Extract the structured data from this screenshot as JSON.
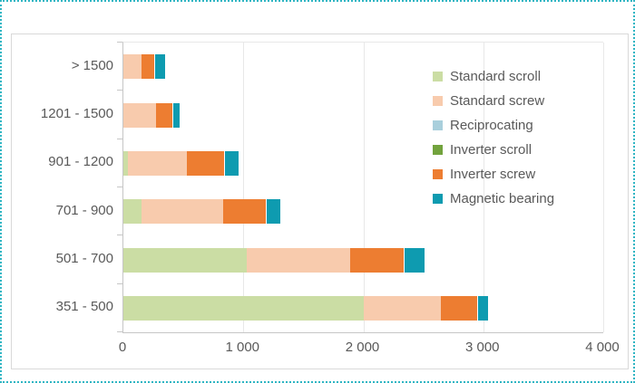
{
  "frame": {
    "outer_border_color": "#2fb5c3",
    "chart_border_color": "#d9d9d9",
    "text_color": "#595959",
    "gridline_color": "#e8e8e8",
    "axis_color": "#c6c6c6"
  },
  "chart_data": {
    "type": "bar",
    "orientation": "horizontal",
    "stacked": true,
    "title": "",
    "xlabel": "",
    "ylabel": "",
    "categories": [
      "> 1500",
      "1201 - 1500",
      "901 - 1200",
      "701 - 900",
      "501 - 700",
      "351 - 500"
    ],
    "series": [
      {
        "name": "Standard scroll",
        "color": "#cbdda4",
        "values": [
          0,
          0,
          40,
          150,
          1030,
          2000
        ]
      },
      {
        "name": "Standard screw",
        "color": "#f8cbad",
        "values": [
          150,
          270,
          490,
          680,
          860,
          650
        ]
      },
      {
        "name": "Reciprocating",
        "color": "#a9cfdc",
        "values": [
          0,
          0,
          0,
          0,
          0,
          0
        ]
      },
      {
        "name": "Inverter scroll",
        "color": "#72a33d",
        "values": [
          0,
          0,
          0,
          0,
          0,
          0
        ]
      },
      {
        "name": "Inverter screw",
        "color": "#ed7d31",
        "values": [
          110,
          140,
          310,
          360,
          450,
          300
        ]
      },
      {
        "name": "Magnetic bearing",
        "color": "#0e9bb0",
        "values": [
          90,
          60,
          120,
          120,
          170,
          90
        ]
      }
    ],
    "totals": [
      350,
      470,
      960,
      1310,
      2510,
      3040
    ],
    "xlim": [
      0,
      4000
    ],
    "x_tick_values": [
      0,
      1000,
      2000,
      3000,
      4000
    ],
    "x_tick_labels": [
      "0",
      "1 000",
      "2 000",
      "3 000",
      "4 000"
    ],
    "grid": true,
    "legend_position": "right"
  }
}
